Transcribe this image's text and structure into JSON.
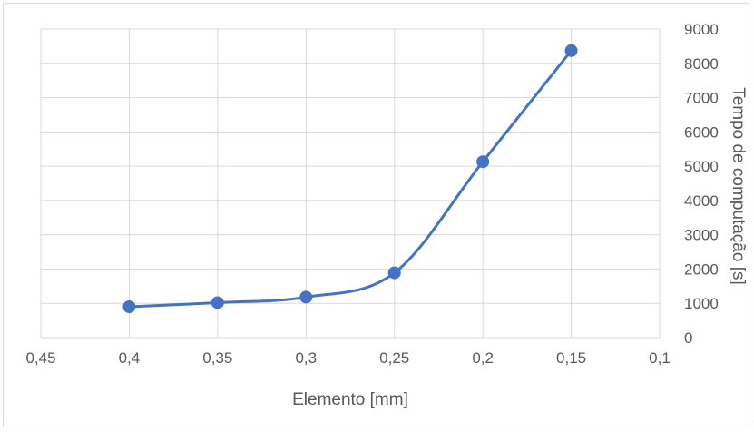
{
  "chart_data": {
    "type": "line",
    "xlabel": "Elemento [mm]",
    "ylabel": "Tempo de computação [s]",
    "x_axis": {
      "min": 0.1,
      "max": 0.45,
      "reversed": true,
      "ticks": [
        0.45,
        0.4,
        0.35,
        0.3,
        0.25,
        0.2,
        0.15,
        0.1
      ],
      "tick_labels": [
        "0,45",
        "0,4",
        "0,35",
        "0,3",
        "0,25",
        "0,2",
        "0,15",
        "0,1"
      ]
    },
    "y_axis": {
      "min": 0,
      "max": 9000,
      "position": "right",
      "ticks": [
        0,
        1000,
        2000,
        3000,
        4000,
        5000,
        6000,
        7000,
        8000,
        9000
      ],
      "tick_labels": [
        "0",
        "1000",
        "2000",
        "3000",
        "4000",
        "5000",
        "6000",
        "7000",
        "8000",
        "9000"
      ]
    },
    "grid": true,
    "smooth": true,
    "series": [
      {
        "x": [
          0.4,
          0.35,
          0.3,
          0.25,
          0.2,
          0.15
        ],
        "y": [
          900,
          1020,
          1180,
          1890,
          5130,
          8370
        ],
        "color": "#4472c4",
        "marker": "circle"
      }
    ]
  },
  "colors": {
    "grid": "#d9d9d9",
    "text": "#595959",
    "series": "#4472c4"
  }
}
